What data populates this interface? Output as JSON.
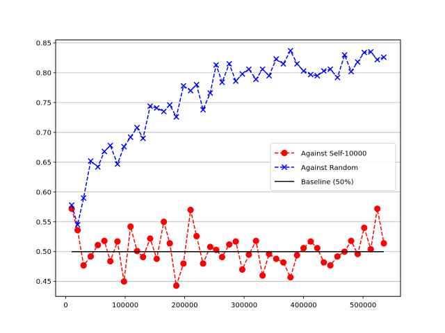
{
  "chart_data": {
    "type": "line",
    "title": "",
    "xlabel": "",
    "ylabel": "",
    "xlim": [
      -17000,
      563000
    ],
    "ylim": [
      0.425,
      0.855
    ],
    "grid": "y-axis horizontal lines",
    "legend_position": "center-right",
    "x_ticks": [
      0,
      100000,
      200000,
      300000,
      400000,
      500000
    ],
    "x_tick_labels": [
      "0",
      "100000",
      "200000",
      "300000",
      "400000",
      "500000"
    ],
    "y_ticks": [
      0.45,
      0.5,
      0.55,
      0.6,
      0.65,
      0.7,
      0.75,
      0.8,
      0.85
    ],
    "y_tick_labels": [
      "0.45",
      "0.50",
      "0.55",
      "0.60",
      "0.65",
      "0.70",
      "0.75",
      "0.80",
      "0.85"
    ],
    "x": [
      10000,
      20000,
      30000,
      42000,
      54000,
      65000,
      75000,
      87000,
      98000,
      109000,
      120000,
      130000,
      142000,
      153000,
      165000,
      175000,
      186000,
      198000,
      210000,
      220000,
      231000,
      243000,
      253000,
      263000,
      275000,
      286000,
      297000,
      308000,
      320000,
      331000,
      342000,
      354000,
      366000,
      378000,
      389000,
      400000,
      412000,
      423000,
      434000,
      445000,
      457000,
      469000,
      480000,
      491000,
      502000,
      513000,
      524000,
      535000
    ],
    "series": [
      {
        "name": "Against Self-10000",
        "color": "#ff0000",
        "marker": "circle",
        "linestyle": "dashed",
        "values": [
          0.572,
          0.536,
          0.477,
          0.492,
          0.511,
          0.518,
          0.484,
          0.517,
          0.45,
          0.542,
          0.501,
          0.491,
          0.522,
          0.488,
          0.55,
          0.514,
          0.443,
          0.48,
          0.57,
          0.526,
          0.48,
          0.508,
          0.503,
          0.491,
          0.512,
          0.517,
          0.47,
          0.495,
          0.518,
          0.46,
          0.496,
          0.488,
          0.482,
          0.457,
          0.494,
          0.506,
          0.517,
          0.506,
          0.482,
          0.477,
          0.492,
          0.5,
          0.518,
          0.496,
          0.54,
          0.504,
          0.572,
          0.514
        ]
      },
      {
        "name": "Against Random",
        "color": "#0000ff",
        "marker": "x",
        "linestyle": "dashed",
        "values": [
          0.578,
          0.545,
          0.59,
          0.652,
          0.642,
          0.668,
          0.678,
          0.647,
          0.676,
          0.692,
          0.708,
          0.69,
          0.744,
          0.741,
          0.735,
          0.746,
          0.726,
          0.778,
          0.77,
          0.78,
          0.738,
          0.766,
          0.813,
          0.784,
          0.815,
          0.786,
          0.798,
          0.806,
          0.789,
          0.806,
          0.795,
          0.823,
          0.815,
          0.837,
          0.815,
          0.803,
          0.797,
          0.795,
          0.803,
          0.806,
          0.792,
          0.83,
          0.802,
          0.818,
          0.834,
          0.835,
          0.822,
          0.826
        ]
      },
      {
        "name": "Baseline (50%)",
        "color": "#000000",
        "marker": "none",
        "linestyle": "solid",
        "x": [
          10000,
          535000
        ],
        "values": [
          0.5,
          0.5
        ]
      }
    ]
  }
}
